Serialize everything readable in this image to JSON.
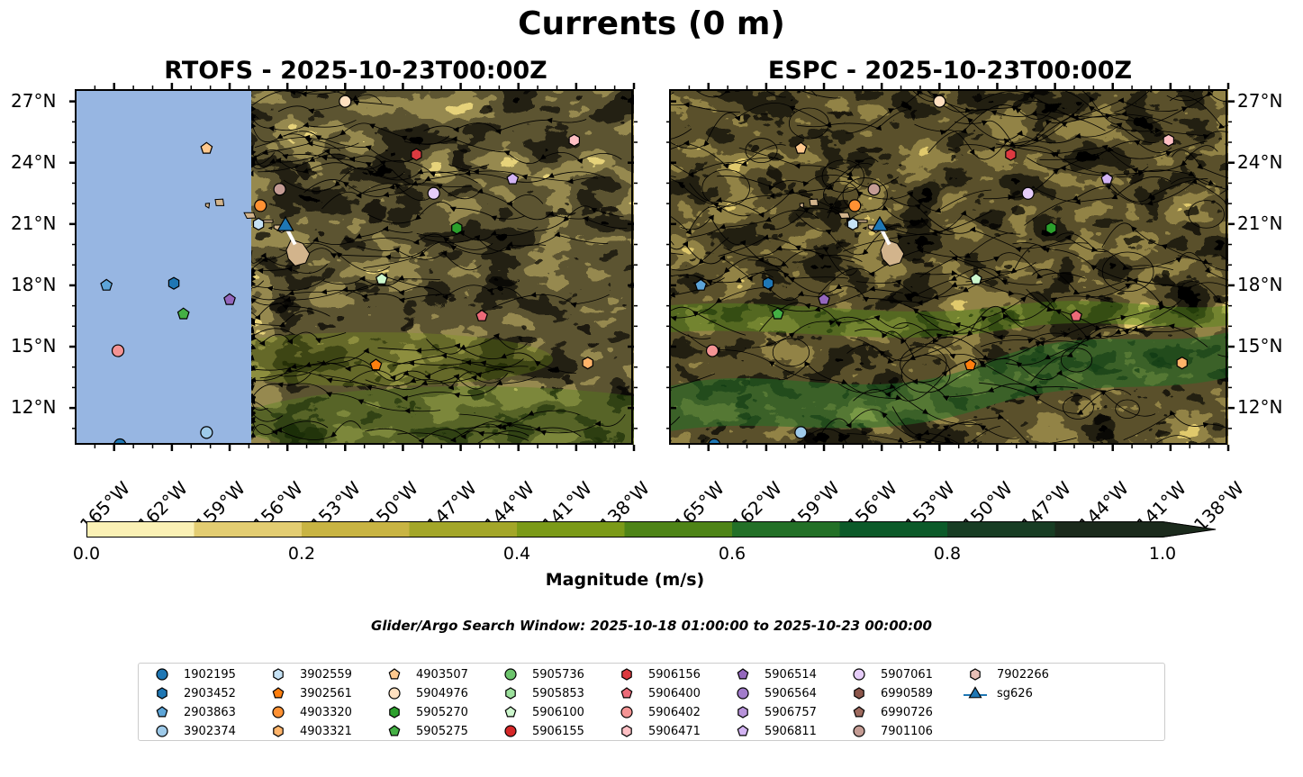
{
  "figure": {
    "title": "Currents (0 m)",
    "panels": [
      {
        "title": "RTOFS - 2025-10-23T00:00Z"
      },
      {
        "title": "ESPC - 2025-10-23T00:00Z"
      }
    ],
    "lat_labels": [
      "27°N",
      "24°N",
      "21°N",
      "18°N",
      "15°N",
      "12°N"
    ],
    "lon_labels": [
      "165°W",
      "162°W",
      "159°W",
      "156°W",
      "153°W",
      "150°W",
      "147°W",
      "144°W",
      "141°W",
      "138°W"
    ],
    "lat_range": [
      10.2,
      27.6
    ],
    "lon_range": [
      -167.0,
      -138.0
    ],
    "colorbar": {
      "label": "Magnitude (m/s)",
      "ticks": [
        "0.0",
        "0.2",
        "0.4",
        "0.6",
        "0.8",
        "1.0"
      ],
      "range": [
        0.0,
        1.0
      ],
      "colors": [
        "#fbf1b5",
        "#e3cd72",
        "#c8b443",
        "#a3a629",
        "#7b9a18",
        "#4e8417",
        "#237027",
        "#0c5a29",
        "#183d24",
        "#1b2a1c"
      ]
    },
    "search_window": "Glider/Argo Search Window: 2025-10-18 01:00:00 to 2025-10-23 00:00:00",
    "land_color": "#d2b48c",
    "nodata_color": "#97b6e2",
    "glider_track_color": "#ffffff"
  },
  "legend": [
    {
      "label": "1902195",
      "color": "#1f77b4",
      "marker": "circle"
    },
    {
      "label": "2903452",
      "color": "#1f77b4",
      "marker": "hexagon"
    },
    {
      "label": "2903863",
      "color": "#5da5d8",
      "marker": "pentagon"
    },
    {
      "label": "3902374",
      "color": "#9ecae9",
      "marker": "circle"
    },
    {
      "label": "3902559",
      "color": "#c6e2f5",
      "marker": "hexagon"
    },
    {
      "label": "3902561",
      "color": "#ff7f0e",
      "marker": "pentagon"
    },
    {
      "label": "4903320",
      "color": "#ff9133",
      "marker": "circle"
    },
    {
      "label": "4903321",
      "color": "#ffb46a",
      "marker": "hexagon"
    },
    {
      "label": "4903507",
      "color": "#ffc98e",
      "marker": "pentagon"
    },
    {
      "label": "5904976",
      "color": "#ffe0c0",
      "marker": "circle"
    },
    {
      "label": "5905270",
      "color": "#2ca02c",
      "marker": "hexagon"
    },
    {
      "label": "5905275",
      "color": "#44b044",
      "marker": "pentagon"
    },
    {
      "label": "5905736",
      "color": "#6cc46c",
      "marker": "circle"
    },
    {
      "label": "5905853",
      "color": "#9be09b",
      "marker": "hexagon"
    },
    {
      "label": "5906100",
      "color": "#cdf7cd",
      "marker": "pentagon"
    },
    {
      "label": "5906155",
      "color": "#d62728",
      "marker": "circle"
    },
    {
      "label": "5906156",
      "color": "#dd3a40",
      "marker": "hexagon"
    },
    {
      "label": "5906400",
      "color": "#ec6a78",
      "marker": "pentagon"
    },
    {
      "label": "5906402",
      "color": "#f49494",
      "marker": "circle"
    },
    {
      "label": "5906471",
      "color": "#ffc0c4",
      "marker": "hexagon"
    },
    {
      "label": "5906514",
      "color": "#9467bd",
      "marker": "pentagon"
    },
    {
      "label": "5906564",
      "color": "#a27ccb",
      "marker": "circle"
    },
    {
      "label": "5906757",
      "color": "#b893da",
      "marker": "hexagon"
    },
    {
      "label": "5906811",
      "color": "#d3b4f3",
      "marker": "pentagon"
    },
    {
      "label": "5907061",
      "color": "#e6cdf9",
      "marker": "circle"
    },
    {
      "label": "6990589",
      "color": "#8c564b",
      "marker": "hexagon"
    },
    {
      "label": "6990726",
      "color": "#9e6a5e",
      "marker": "pentagon"
    },
    {
      "label": "7901106",
      "color": "#c49c94",
      "marker": "circle"
    },
    {
      "label": "7902266",
      "color": "#e7bfb6",
      "marker": "hexagon"
    },
    {
      "label": "sg626",
      "color": "#1f77b4",
      "marker": "triangle"
    }
  ],
  "floats": [
    {
      "id": "1902195",
      "lon": -164.7,
      "lat": 10.2
    },
    {
      "id": "2903452",
      "lon": -161.9,
      "lat": 18.1
    },
    {
      "id": "2903863",
      "lon": -165.4,
      "lat": 18.0
    },
    {
      "id": "3902374",
      "lon": -160.2,
      "lat": 10.8
    },
    {
      "id": "3902559",
      "lon": -157.5,
      "lat": 21.0
    },
    {
      "id": "3902561",
      "lon": -151.4,
      "lat": 14.1
    },
    {
      "id": "4903320",
      "lon": -157.4,
      "lat": 21.9
    },
    {
      "id": "4903321",
      "lon": -140.4,
      "lat": 14.2
    },
    {
      "id": "4903507",
      "lon": -160.2,
      "lat": 24.7
    },
    {
      "id": "5904976",
      "lon": -153.0,
      "lat": 27.0
    },
    {
      "id": "5905270",
      "lon": -147.2,
      "lat": 20.8
    },
    {
      "id": "5905275",
      "lon": -161.4,
      "lat": 16.6
    },
    {
      "id": "5906100",
      "lon": -151.1,
      "lat": 18.3
    },
    {
      "id": "5906156",
      "lon": -149.3,
      "lat": 24.4
    },
    {
      "id": "5906400",
      "lon": -145.9,
      "lat": 16.5
    },
    {
      "id": "5906402",
      "lon": -164.8,
      "lat": 14.8
    },
    {
      "id": "5906471",
      "lon": -141.1,
      "lat": 25.1
    },
    {
      "id": "5906514",
      "lon": -159.0,
      "lat": 17.3
    },
    {
      "id": "5906811",
      "lon": -144.3,
      "lat": 23.2
    },
    {
      "id": "5907061",
      "lon": -148.4,
      "lat": 22.5
    },
    {
      "id": "7901106",
      "lon": -156.4,
      "lat": 22.7
    }
  ],
  "glider": {
    "id": "sg626",
    "lon": -156.1,
    "lat": 20.9
  }
}
